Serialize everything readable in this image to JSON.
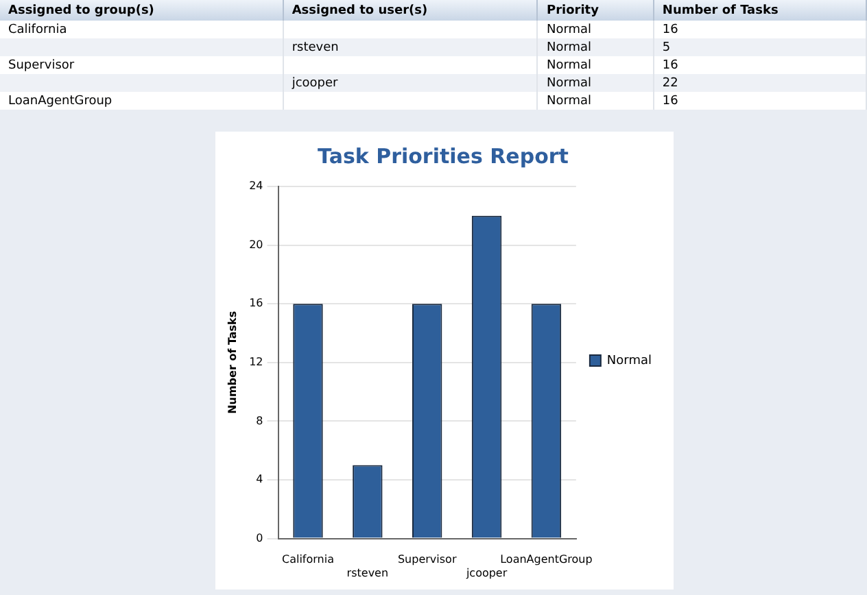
{
  "chart_data": {
    "type": "bar",
    "title": "Task Priorities Report",
    "ylabel": "Number of Tasks",
    "categories": [
      "California",
      "rsteven",
      "Supervisor",
      "jcooper",
      "LoanAgentGroup"
    ],
    "series": [
      {
        "name": "Normal",
        "color": "#2e5f9a",
        "values": [
          16,
          5,
          16,
          22,
          16
        ]
      }
    ],
    "ylim": [
      0,
      24
    ],
    "yticks": [
      0,
      4,
      8,
      12,
      16,
      20,
      24
    ],
    "grid": "y",
    "legend": "right",
    "annotations": [
      "Assigned to group(s)",
      "Assigned to user(s)",
      "Priority",
      "Number of Tasks",
      "16",
      "5",
      "16",
      "22",
      "16"
    ]
  }
}
